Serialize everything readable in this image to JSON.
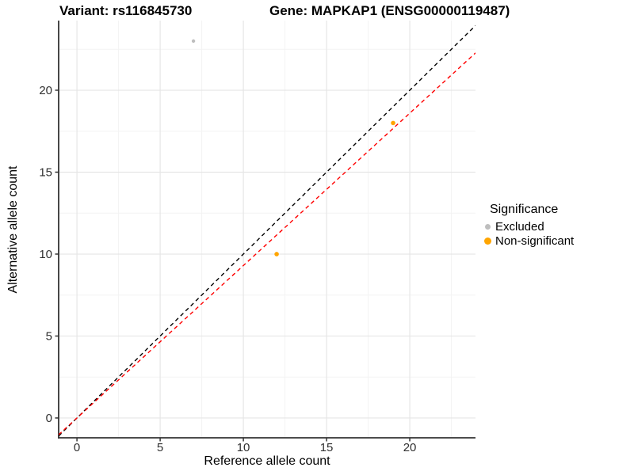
{
  "titles": {
    "variant": "Variant: rs116845730",
    "gene": "Gene: MAPKAP1 (ENSG00000119487)"
  },
  "chart_data": {
    "type": "scatter",
    "xlabel": "Reference allele count",
    "ylabel": "Alternative allele count",
    "xlim": [
      -1.1,
      23.95
    ],
    "ylim": [
      -1.21,
      24.25
    ],
    "x_ticks": [
      0,
      5,
      10,
      15,
      20
    ],
    "y_ticks": [
      0,
      5,
      10,
      15,
      20
    ],
    "x_minor_ticks": [
      2.5,
      7.5,
      12.5,
      17.5,
      22.5
    ],
    "y_minor_ticks": [
      2.5,
      7.5,
      12.5,
      17.5,
      22.5
    ],
    "grid": "major+minor",
    "series": [
      {
        "name": "Excluded",
        "color": "#bebebe",
        "point_radius": 2.2,
        "points": [
          [
            7,
            23
          ]
        ]
      },
      {
        "name": "Non-significant",
        "color": "#ffa500",
        "point_radius": 2.8,
        "points": [
          [
            12,
            10
          ],
          [
            19,
            18
          ]
        ]
      }
    ],
    "reference_lines": [
      {
        "name": "identity",
        "slope": 1.0,
        "intercept": 0,
        "color": "#000000",
        "style": "dashed"
      },
      {
        "name": "expected-ratio",
        "slope": 0.93,
        "intercept": 0,
        "color": "#ff0000",
        "style": "dashed"
      }
    ],
    "legend": {
      "title": "Significance",
      "position": "right",
      "items": [
        {
          "label": "Excluded",
          "color": "#bebebe",
          "diameter": 7
        },
        {
          "label": "Non-significant",
          "color": "#ffa500",
          "diameter": 9
        }
      ]
    },
    "colors": {
      "grid_major": "#e6e6e6",
      "grid_minor": "#f3f3f3",
      "axis": "#333333",
      "tick_label": "#303030"
    }
  }
}
